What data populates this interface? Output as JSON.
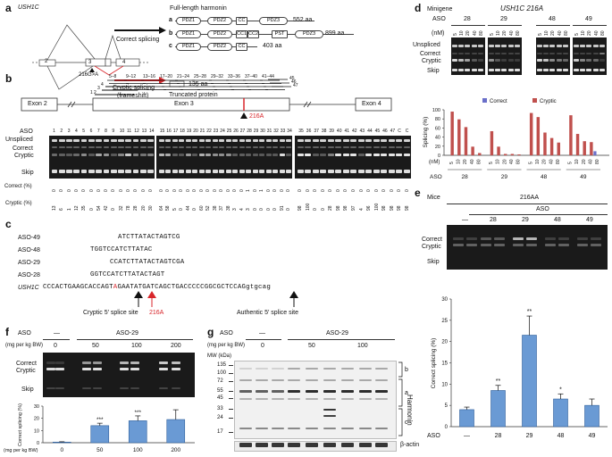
{
  "panel_a": {
    "label": "a",
    "gene": "USH1C",
    "exons": [
      "2",
      "3",
      "4"
    ],
    "mutation": "216G>A",
    "correct": "Correct splicing",
    "cryptic": "Cryptic splicing",
    "frameshift": "(frameshift)",
    "full_length": "Full-length harmonin",
    "isoforms": [
      {
        "id": "a",
        "domains": [
          "PDZ1",
          "PDZ2",
          "CC",
          "PDZ3"
        ],
        "size": "552 aa"
      },
      {
        "id": "b",
        "domains": [
          "PDZ1",
          "PDZ2",
          "CC1",
          "CC2",
          "PST",
          "PDZ3"
        ],
        "size": "899 aa"
      },
      {
        "id": "c",
        "domains": [
          "PDZ1",
          "PDZ2",
          "CC"
        ],
        "size": "403 aa"
      }
    ],
    "truncated": "Truncated protein",
    "truncated_size": "135 aa"
  },
  "panel_b": {
    "label": "b",
    "exons": [
      "Exon 2",
      "Exon 3",
      "Exon 4"
    ],
    "mutation": "216A",
    "aso_ranges": [
      "1",
      "2",
      "3",
      "4",
      "5–8",
      "9–12",
      "13–16",
      "17–20",
      "21–24",
      "25–28",
      "29–32",
      "33–36",
      "37–40",
      "41–44",
      "45",
      "46",
      "47"
    ],
    "row_labels": [
      "ASO",
      "Unspliced",
      "Correct",
      "Cryptic",
      "Skip",
      "Correct (%)",
      "Cryptic (%)"
    ],
    "gel1": {
      "aso": [
        "1",
        "2",
        "3",
        "4",
        "5",
        "6",
        "7",
        "8",
        "9",
        "10",
        "11",
        "12",
        "13",
        "14"
      ],
      "correct": [
        "0",
        "0",
        "0",
        "0",
        "0",
        "0",
        "0",
        "0",
        "0",
        "0",
        "0",
        "0",
        "0",
        "0"
      ],
      "cryptic": [
        "13",
        "6",
        "1",
        "12",
        "35",
        "0",
        "54",
        "42",
        "0",
        "32",
        "78",
        "28",
        "20",
        "30"
      ]
    },
    "gel2": {
      "aso": [
        "15",
        "16",
        "17",
        "18",
        "19",
        "20",
        "21",
        "22",
        "23",
        "24",
        "25",
        "26",
        "27",
        "28",
        "29",
        "30",
        "31",
        "32",
        "33",
        "34"
      ],
      "correct": [
        "0",
        "0",
        "0",
        "0",
        "0",
        "0",
        "0",
        "0",
        "0",
        "0",
        "0",
        "0",
        "0",
        "1",
        "0",
        "1",
        "0",
        "0",
        "0",
        "0"
      ],
      "cryptic": [
        "64",
        "58",
        "5",
        "0",
        "44",
        "0",
        "60",
        "52",
        "38",
        "37",
        "38",
        "3",
        "4",
        "3",
        "0",
        "0",
        "0",
        "0",
        "91",
        "0"
      ]
    },
    "gel3": {
      "aso": [
        "35",
        "36",
        "37",
        "38",
        "39",
        "40",
        "41",
        "42",
        "43",
        "44",
        "45",
        "46",
        "47",
        "C",
        "C"
      ],
      "correct": [
        "0",
        "0",
        "0",
        "0",
        "0",
        "0",
        "0",
        "0",
        "0",
        "0",
        "0",
        "0",
        "0",
        "0",
        "0"
      ],
      "cryptic": [
        "98",
        "100",
        "0",
        "0",
        "28",
        "98",
        "98",
        "97",
        "4",
        "96",
        "100",
        "98",
        "98",
        "98",
        "98"
      ]
    }
  },
  "panel_c": {
    "label": "c",
    "asos": [
      {
        "name": "ASO-49",
        "seq": "ATCTTATACTAGTCG"
      },
      {
        "name": "ASO-48",
        "seq": "TGGTCCATCTTATAC"
      },
      {
        "name": "ASO-29",
        "seq": "CCATCTTATACTAGTCGA"
      },
      {
        "name": "ASO-28",
        "seq": "GGTCCATCTTATACTAGT"
      }
    ],
    "gene": "USH1C",
    "seq_pre": "CCCACTGAAGCACCAGT",
    "seq_mut": "A",
    "seq_mid": "GAATATGATCAGCTGACCCCCGGCGCTCCAG",
    "seq_intron": "gtgcag",
    "cryptic_site": "Cryptic 5′ splice site",
    "mut_label": "216A",
    "authentic_site": "Authentic 5′ splice site"
  },
  "panel_d": {
    "label": "d",
    "minigene": "Minigene",
    "title": "USH1C 216A",
    "aso_label": "ASO",
    "nm_label": "(nM)",
    "groups": [
      "28",
      "29",
      "48",
      "49"
    ],
    "conc": [
      "5",
      "10",
      "20",
      "40",
      "80"
    ],
    "band_labels": [
      "Unspliced",
      "Correct",
      "Cryptic",
      "Skip"
    ],
    "chart_data": {
      "type": "bar",
      "ylabel": "Splicing (%)",
      "ylim": [
        0,
        100
      ],
      "yticks": [
        0,
        20,
        40,
        60,
        80,
        100
      ],
      "legend": [
        "Correct",
        "Cryptic"
      ],
      "groups": [
        "28",
        "29",
        "48",
        "49"
      ],
      "conc": [
        "5",
        "10",
        "20",
        "40",
        "80"
      ],
      "series": [
        {
          "name": "Correct",
          "color": "#6a6fc9",
          "values": [
            [
              0,
              0,
              0,
              0,
              0
            ],
            [
              0,
              0,
              0,
              0,
              0
            ],
            [
              0,
              0,
              0,
              0,
              0
            ],
            [
              0,
              0,
              0,
              0,
              9
            ]
          ]
        },
        {
          "name": "Cryptic",
          "color": "#c0504d",
          "values": [
            [
              96,
              79,
              62,
              19,
              5
            ],
            [
              53,
              19,
              3,
              3,
              2
            ],
            [
              93,
              84,
              50,
              38,
              28
            ],
            [
              88,
              47,
              31,
              29,
              0
            ]
          ]
        }
      ],
      "xlabel_top": "(nM)",
      "xlabel_bottom": "ASO"
    }
  },
  "panel_e": {
    "label": "e",
    "mice": "Mice",
    "genotype": "216AA",
    "aso": "ASO",
    "groups": [
      "—",
      "28",
      "29",
      "48",
      "49"
    ],
    "band_labels": [
      "Correct",
      "Cryptic",
      "Skip"
    ],
    "chart_data": {
      "type": "bar",
      "ylabel": "Correct splicing (%)",
      "ylim": [
        0,
        30
      ],
      "yticks": [
        0,
        5,
        10,
        15,
        20,
        25,
        30
      ],
      "categories": [
        "—",
        "28",
        "29",
        "48",
        "49"
      ],
      "values": [
        4,
        8.5,
        21.5,
        6.5,
        5
      ],
      "errors": [
        0.6,
        1.2,
        4.5,
        1.2,
        1.5
      ],
      "significance": [
        "",
        "**",
        "**",
        "*",
        ""
      ],
      "xlabel": "ASO"
    }
  },
  "panel_f": {
    "label": "f",
    "aso": "ASO",
    "none": "—",
    "aso29": "ASO-29",
    "dose_label": "(mg per kg BW)",
    "doses": [
      "0",
      "50",
      "100",
      "200"
    ],
    "band_labels": [
      "Correct",
      "Cryptic",
      "Skip"
    ],
    "chart_data": {
      "type": "bar",
      "ylabel": "Correct splicing (%)",
      "ylim": [
        0,
        30
      ],
      "yticks": [
        0,
        10,
        20,
        30
      ],
      "categories": [
        "0",
        "50",
        "100",
        "200"
      ],
      "values": [
        0.5,
        14,
        18,
        19
      ],
      "errors": [
        0.3,
        2,
        4,
        8
      ],
      "significance": [
        "",
        "***",
        "***",
        ""
      ],
      "xlabel": "(mg per kg BW)"
    }
  },
  "panel_g": {
    "label": "g",
    "aso": "ASO",
    "none": "—",
    "aso29": "ASO-29",
    "dose_label": "(mg per kg BW)",
    "doses": [
      "0",
      "50",
      "100"
    ],
    "mw_label": "MW (kDa)",
    "mw": [
      "135",
      "100",
      "72",
      "55",
      "45",
      "33",
      "24",
      "17"
    ],
    "isoforms": [
      "b",
      "a",
      "c"
    ],
    "harmonin": "Harmonin",
    "actin": "β-actin"
  }
}
